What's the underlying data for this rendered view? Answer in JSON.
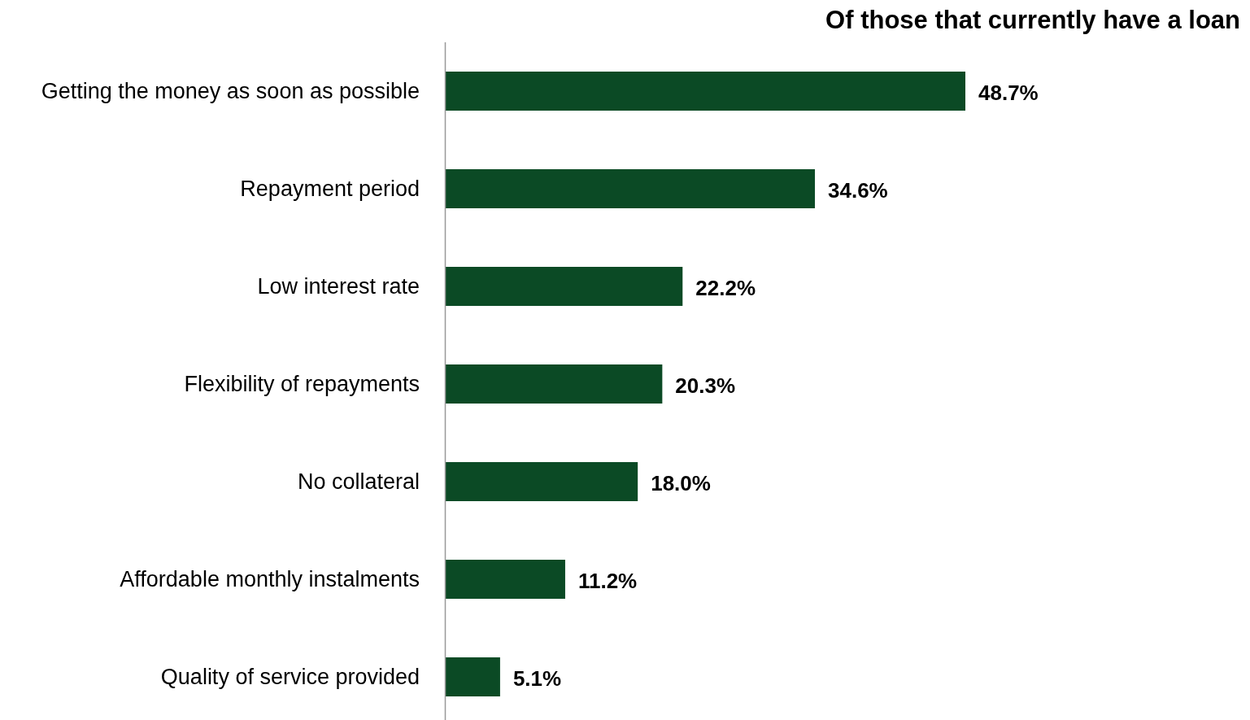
{
  "chart_data": {
    "type": "bar",
    "orientation": "horizontal",
    "title": "Of those that currently have a loan",
    "categories": [
      "Getting the money as soon as possible",
      "Repayment period",
      "Low interest rate",
      "Flexibility of repayments",
      "No collateral",
      "Affordable monthly instalments",
      "Quality of service provided"
    ],
    "values": [
      48.7,
      34.6,
      22.2,
      20.3,
      18.0,
      11.2,
      5.1
    ],
    "value_labels": [
      "48.7%",
      "34.6%",
      "22.2%",
      "20.3%",
      "18.0%",
      "11.2%",
      "5.1%"
    ],
    "color": "#0b4a25"
  }
}
